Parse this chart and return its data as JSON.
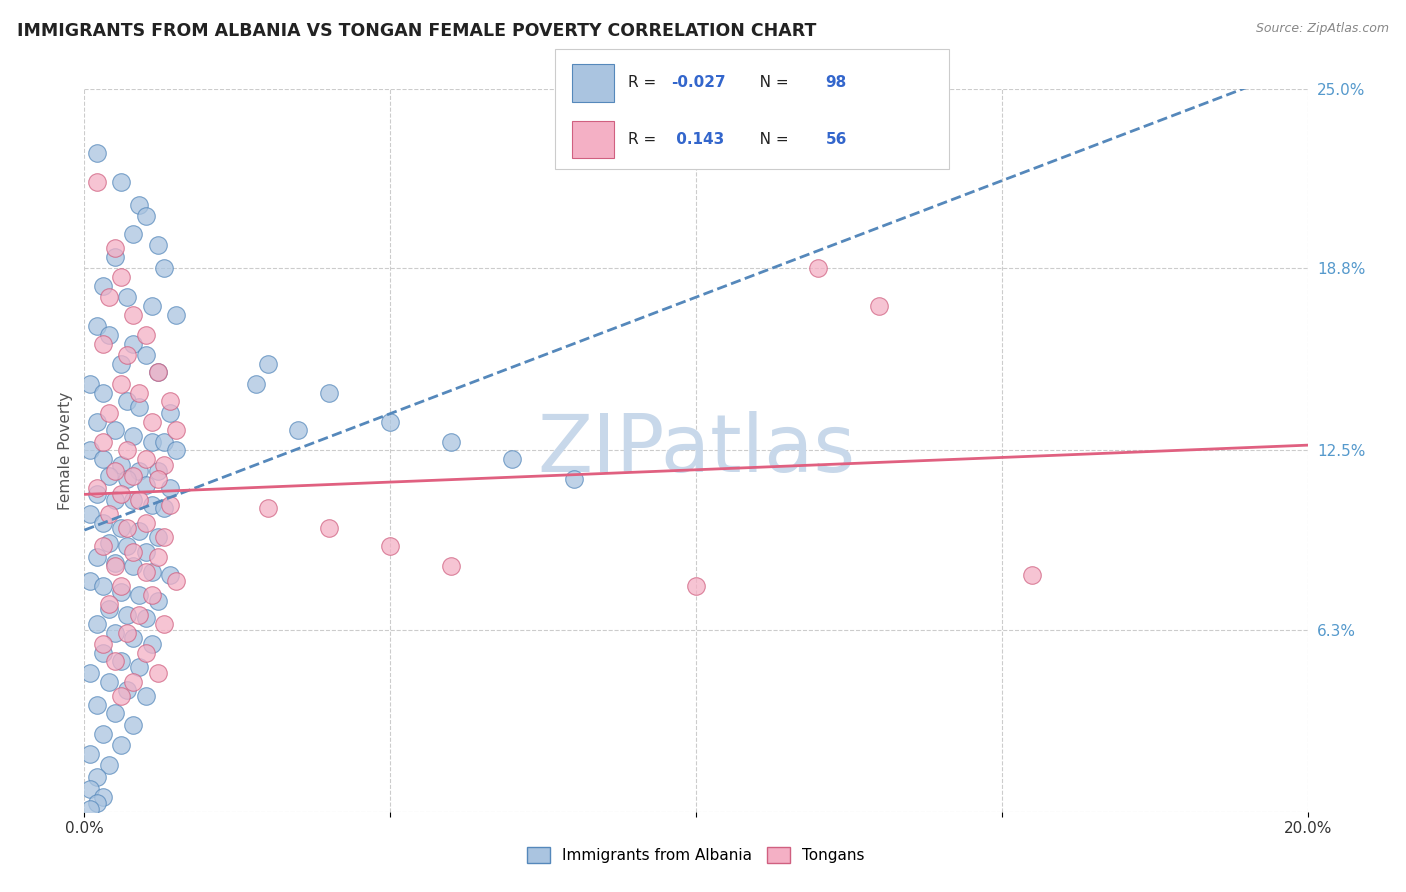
{
  "title": "IMMIGRANTS FROM ALBANIA VS TONGAN FEMALE POVERTY CORRELATION CHART",
  "source": "Source: ZipAtlas.com",
  "ylabel": "Female Poverty",
  "x_min": 0.0,
  "x_max": 0.2,
  "y_min": 0.0,
  "y_max": 0.25,
  "x_ticks": [
    0.0,
    0.05,
    0.1,
    0.15,
    0.2
  ],
  "x_tick_labels": [
    "0.0%",
    "",
    "",
    "",
    "20.0%"
  ],
  "y_tick_labels_right": [
    "25.0%",
    "18.8%",
    "12.5%",
    "6.3%",
    ""
  ],
  "y_ticks_right": [
    0.25,
    0.188,
    0.125,
    0.063,
    0.0
  ],
  "albania_color": "#aac4e0",
  "albania_edge_color": "#5588bb",
  "tongan_color": "#f4b0c5",
  "tongan_edge_color": "#d06080",
  "albania_R": -0.027,
  "albania_N": 98,
  "tongan_R": 0.143,
  "tongan_N": 56,
  "albania_line_color": "#5588bb",
  "tongan_line_color": "#e06080",
  "watermark_color": "#c8d8ea",
  "legend_label_albania": "Immigrants from Albania",
  "legend_label_tongan": "Tongans",
  "albania_scatter": [
    [
      0.002,
      0.228
    ],
    [
      0.006,
      0.218
    ],
    [
      0.009,
      0.21
    ],
    [
      0.01,
      0.206
    ],
    [
      0.008,
      0.2
    ],
    [
      0.012,
      0.196
    ],
    [
      0.005,
      0.192
    ],
    [
      0.013,
      0.188
    ],
    [
      0.003,
      0.182
    ],
    [
      0.007,
      0.178
    ],
    [
      0.011,
      0.175
    ],
    [
      0.015,
      0.172
    ],
    [
      0.002,
      0.168
    ],
    [
      0.004,
      0.165
    ],
    [
      0.008,
      0.162
    ],
    [
      0.01,
      0.158
    ],
    [
      0.006,
      0.155
    ],
    [
      0.012,
      0.152
    ],
    [
      0.001,
      0.148
    ],
    [
      0.003,
      0.145
    ],
    [
      0.007,
      0.142
    ],
    [
      0.009,
      0.14
    ],
    [
      0.014,
      0.138
    ],
    [
      0.002,
      0.135
    ],
    [
      0.005,
      0.132
    ],
    [
      0.008,
      0.13
    ],
    [
      0.011,
      0.128
    ],
    [
      0.013,
      0.128
    ],
    [
      0.015,
      0.125
    ],
    [
      0.001,
      0.125
    ],
    [
      0.003,
      0.122
    ],
    [
      0.006,
      0.12
    ],
    [
      0.009,
      0.118
    ],
    [
      0.012,
      0.118
    ],
    [
      0.004,
      0.116
    ],
    [
      0.007,
      0.115
    ],
    [
      0.01,
      0.113
    ],
    [
      0.014,
      0.112
    ],
    [
      0.002,
      0.11
    ],
    [
      0.005,
      0.108
    ],
    [
      0.008,
      0.108
    ],
    [
      0.011,
      0.106
    ],
    [
      0.013,
      0.105
    ],
    [
      0.001,
      0.103
    ],
    [
      0.003,
      0.1
    ],
    [
      0.006,
      0.098
    ],
    [
      0.009,
      0.097
    ],
    [
      0.012,
      0.095
    ],
    [
      0.004,
      0.093
    ],
    [
      0.007,
      0.092
    ],
    [
      0.01,
      0.09
    ],
    [
      0.002,
      0.088
    ],
    [
      0.005,
      0.086
    ],
    [
      0.008,
      0.085
    ],
    [
      0.011,
      0.083
    ],
    [
      0.014,
      0.082
    ],
    [
      0.001,
      0.08
    ],
    [
      0.003,
      0.078
    ],
    [
      0.006,
      0.076
    ],
    [
      0.009,
      0.075
    ],
    [
      0.012,
      0.073
    ],
    [
      0.004,
      0.07
    ],
    [
      0.007,
      0.068
    ],
    [
      0.01,
      0.067
    ],
    [
      0.002,
      0.065
    ],
    [
      0.005,
      0.062
    ],
    [
      0.008,
      0.06
    ],
    [
      0.011,
      0.058
    ],
    [
      0.003,
      0.055
    ],
    [
      0.006,
      0.052
    ],
    [
      0.009,
      0.05
    ],
    [
      0.001,
      0.048
    ],
    [
      0.004,
      0.045
    ],
    [
      0.007,
      0.042
    ],
    [
      0.01,
      0.04
    ],
    [
      0.002,
      0.037
    ],
    [
      0.005,
      0.034
    ],
    [
      0.008,
      0.03
    ],
    [
      0.003,
      0.027
    ],
    [
      0.006,
      0.023
    ],
    [
      0.001,
      0.02
    ],
    [
      0.004,
      0.016
    ],
    [
      0.002,
      0.012
    ],
    [
      0.001,
      0.008
    ],
    [
      0.003,
      0.005
    ],
    [
      0.002,
      0.003
    ],
    [
      0.001,
      0.001
    ],
    [
      0.03,
      0.155
    ],
    [
      0.04,
      0.145
    ],
    [
      0.05,
      0.135
    ],
    [
      0.06,
      0.128
    ],
    [
      0.07,
      0.122
    ],
    [
      0.08,
      0.115
    ],
    [
      0.028,
      0.148
    ],
    [
      0.035,
      0.132
    ]
  ],
  "tongan_scatter": [
    [
      0.002,
      0.218
    ],
    [
      0.005,
      0.195
    ],
    [
      0.006,
      0.185
    ],
    [
      0.004,
      0.178
    ],
    [
      0.008,
      0.172
    ],
    [
      0.01,
      0.165
    ],
    [
      0.003,
      0.162
    ],
    [
      0.007,
      0.158
    ],
    [
      0.012,
      0.152
    ],
    [
      0.006,
      0.148
    ],
    [
      0.009,
      0.145
    ],
    [
      0.014,
      0.142
    ],
    [
      0.004,
      0.138
    ],
    [
      0.011,
      0.135
    ],
    [
      0.015,
      0.132
    ],
    [
      0.003,
      0.128
    ],
    [
      0.007,
      0.125
    ],
    [
      0.01,
      0.122
    ],
    [
      0.013,
      0.12
    ],
    [
      0.005,
      0.118
    ],
    [
      0.008,
      0.116
    ],
    [
      0.012,
      0.115
    ],
    [
      0.002,
      0.112
    ],
    [
      0.006,
      0.11
    ],
    [
      0.009,
      0.108
    ],
    [
      0.014,
      0.106
    ],
    [
      0.004,
      0.103
    ],
    [
      0.01,
      0.1
    ],
    [
      0.007,
      0.098
    ],
    [
      0.013,
      0.095
    ],
    [
      0.003,
      0.092
    ],
    [
      0.008,
      0.09
    ],
    [
      0.012,
      0.088
    ],
    [
      0.005,
      0.085
    ],
    [
      0.01,
      0.083
    ],
    [
      0.015,
      0.08
    ],
    [
      0.006,
      0.078
    ],
    [
      0.011,
      0.075
    ],
    [
      0.004,
      0.072
    ],
    [
      0.009,
      0.068
    ],
    [
      0.013,
      0.065
    ],
    [
      0.007,
      0.062
    ],
    [
      0.003,
      0.058
    ],
    [
      0.01,
      0.055
    ],
    [
      0.005,
      0.052
    ],
    [
      0.012,
      0.048
    ],
    [
      0.008,
      0.045
    ],
    [
      0.006,
      0.04
    ],
    [
      0.03,
      0.105
    ],
    [
      0.04,
      0.098
    ],
    [
      0.05,
      0.092
    ],
    [
      0.06,
      0.085
    ],
    [
      0.12,
      0.188
    ],
    [
      0.13,
      0.175
    ],
    [
      0.155,
      0.082
    ],
    [
      0.1,
      0.078
    ]
  ]
}
